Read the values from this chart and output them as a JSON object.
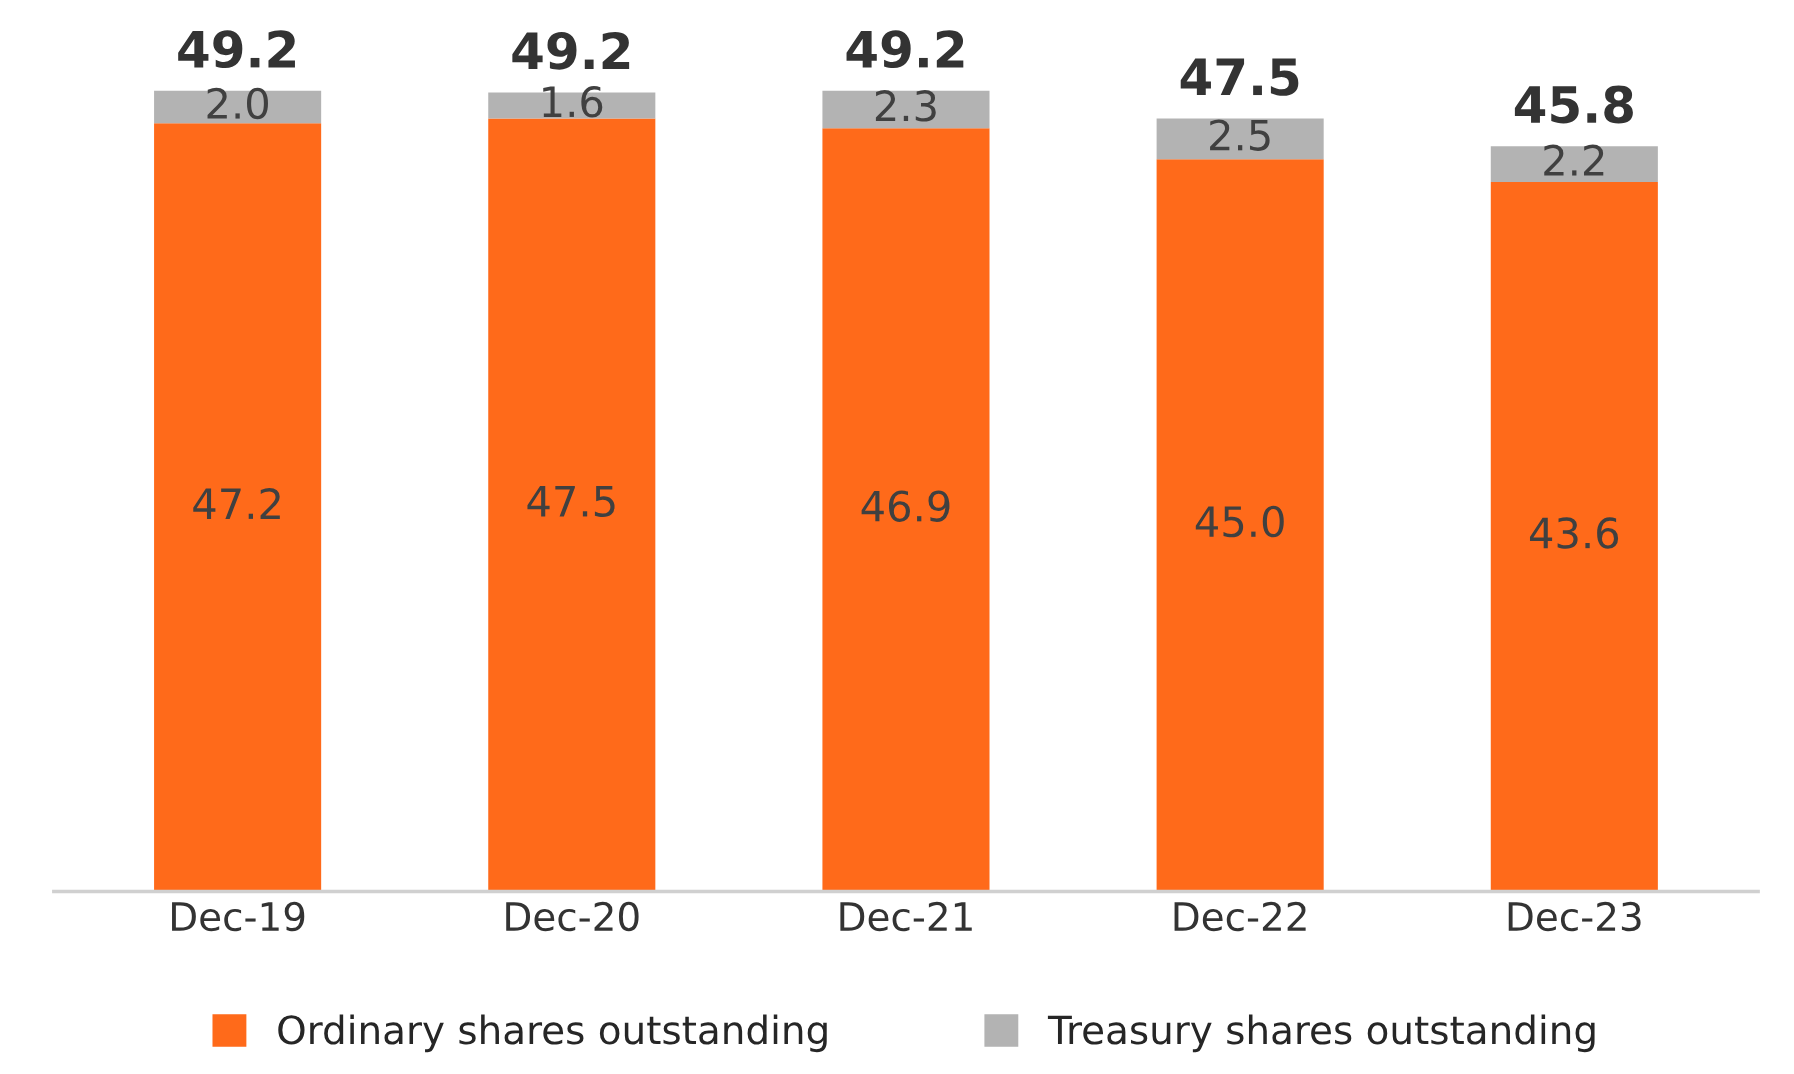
{
  "chart_data": {
    "type": "bar",
    "stacked": true,
    "categories": [
      "Dec-19",
      "Dec-20",
      "Dec-21",
      "Dec-22",
      "Dec-23"
    ],
    "series": [
      {
        "name": "Ordinary shares outstanding",
        "color": "#ff6a1a",
        "values": [
          47.2,
          47.5,
          46.9,
          45.0,
          43.6
        ],
        "value_labels": [
          "47.2",
          "47.5",
          "46.9",
          "45.0",
          "43.6"
        ]
      },
      {
        "name": "Treasury shares outstanding",
        "color": "#b3b3b3",
        "values": [
          2.0,
          1.6,
          2.3,
          2.5,
          2.2
        ],
        "value_labels": [
          "2.0",
          "1.6",
          "2.3",
          "2.5",
          "2.2"
        ]
      }
    ],
    "totals": [
      "49.2",
      "49.2",
      "49.2",
      "47.5",
      "45.8"
    ],
    "tick_labels": "x",
    "legend": "bottom",
    "grid": false
  }
}
